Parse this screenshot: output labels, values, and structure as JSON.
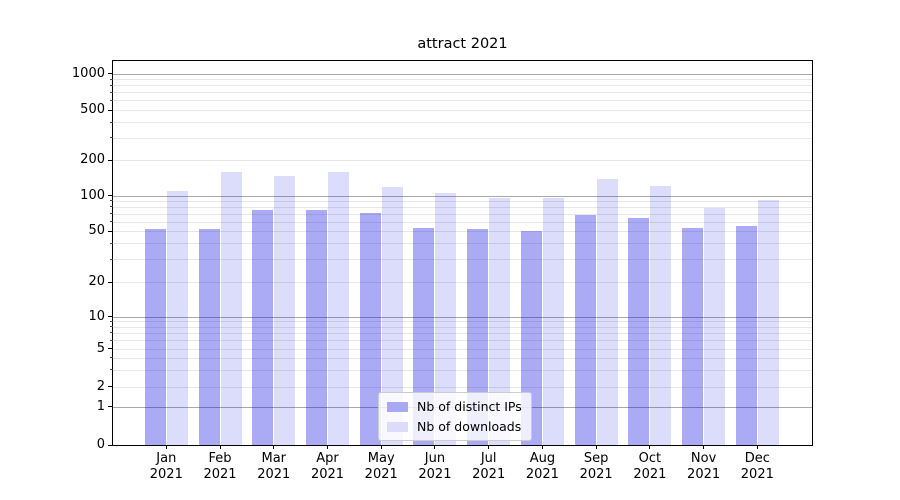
{
  "title": "attract 2021",
  "chart_data": {
    "type": "bar",
    "title": "attract 2021",
    "categories": [
      "Jan 2021",
      "Feb 2021",
      "Mar 2021",
      "Apr 2021",
      "May 2021",
      "Jun 2021",
      "Jul 2021",
      "Aug 2021",
      "Sep 2021",
      "Oct 2021",
      "Nov 2021",
      "Dec 2021"
    ],
    "series": [
      {
        "name": "Nb of distinct IPs",
        "color": "#a8a8f3",
        "color_rgba": "rgba(10,10,225,0.34)",
        "values": [
          52,
          52,
          76,
          76,
          71,
          53,
          52,
          50,
          69,
          65,
          53,
          55
        ]
      },
      {
        "name": "Nb of downloads",
        "color": "#dcdcfa",
        "color_rgba": "rgba(10,10,225,0.14)",
        "values": [
          110,
          158,
          147,
          157,
          119,
          106,
          96,
          96,
          138,
          121,
          78,
          91
        ]
      }
    ],
    "yscale": "symlog",
    "ylim": [
      0,
      1300
    ],
    "y_ticks": [
      0,
      1,
      2,
      5,
      10,
      20,
      50,
      100,
      200,
      500,
      1000
    ],
    "xlabel": "",
    "ylabel": "",
    "grid": true,
    "legend_position": "lower center"
  },
  "colors": {
    "major_grid": "#a9a9a9",
    "minor_grid": "#e7e7e7",
    "spine": "#000000",
    "legend_border": "#cccccc"
  }
}
